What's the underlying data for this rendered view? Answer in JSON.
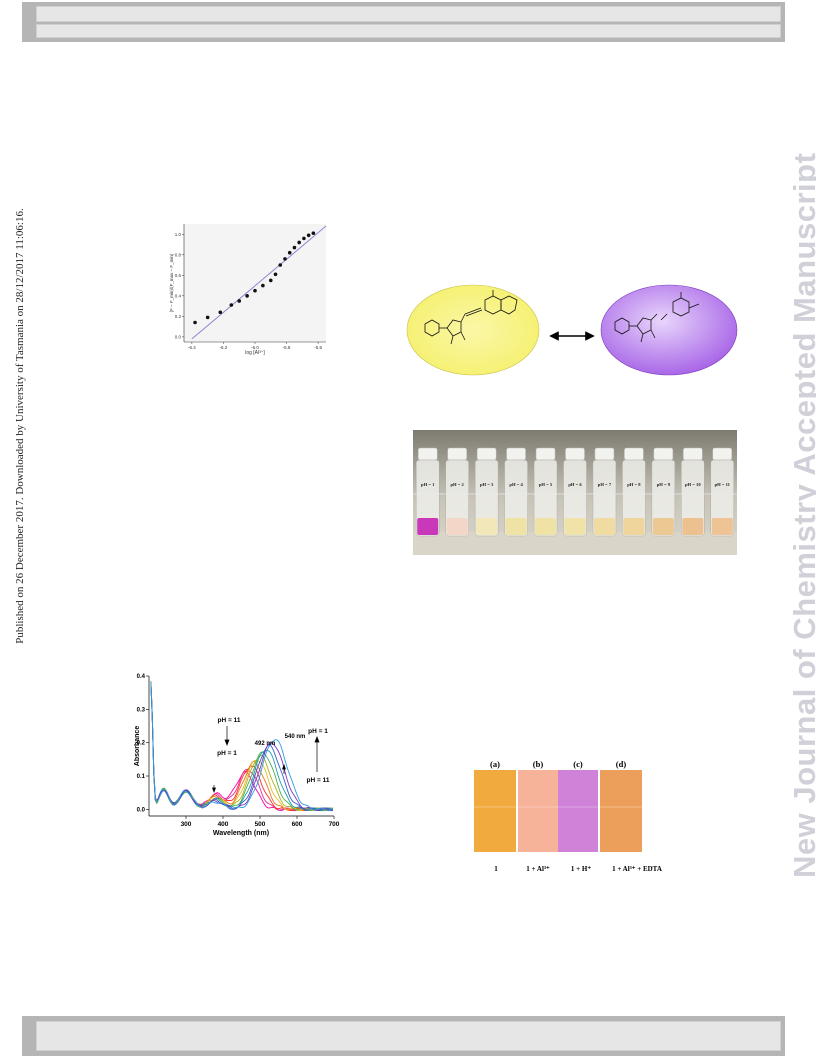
{
  "side_text": {
    "published": "Published on 26 December 2017. Downloaded by University of Tasmania on 28/12/2017 11:06:16.",
    "watermark": "New Journal of Chemistry Accepted Manuscript"
  },
  "chart_data": [
    {
      "type": "scatter",
      "xlabel": "log [Al³⁺]",
      "ylabel": "(F – F_min)/(F_max – F_min)",
      "xlim": [
        -6.45,
        -5.55
      ],
      "ylim": [
        -0.05,
        1.1
      ],
      "xticks": [
        "-6.4",
        "-6.2",
        "-6.0",
        "-5.8",
        "-5.6"
      ],
      "yticks": [
        "0.0",
        "0.2",
        "0.4",
        "0.6",
        "0.8",
        "1.0"
      ],
      "points": [
        [
          -6.38,
          0.14
        ],
        [
          -6.3,
          0.19
        ],
        [
          -6.22,
          0.24
        ],
        [
          -6.15,
          0.31
        ],
        [
          -6.1,
          0.35
        ],
        [
          -6.05,
          0.4
        ],
        [
          -6.0,
          0.45
        ],
        [
          -5.95,
          0.5
        ],
        [
          -5.9,
          0.55
        ],
        [
          -5.87,
          0.61
        ],
        [
          -5.84,
          0.7
        ],
        [
          -5.81,
          0.76
        ],
        [
          -5.78,
          0.82
        ],
        [
          -5.75,
          0.87
        ],
        [
          -5.72,
          0.92
        ],
        [
          -5.69,
          0.96
        ],
        [
          -5.66,
          0.99
        ],
        [
          -5.63,
          1.01
        ]
      ],
      "fit_line": [
        [
          -6.4,
          -0.02
        ],
        [
          -5.55,
          1.08
        ]
      ]
    },
    {
      "type": "line",
      "xlabel": "Wavelength (nm)",
      "ylabel": "Absorbance",
      "xlim": [
        200,
        700
      ],
      "ylim": [
        -0.02,
        0.4
      ],
      "xticks": [
        "300",
        "400",
        "500",
        "600",
        "700"
      ],
      "yticks": [
        "0.0",
        "0.1",
        "0.2",
        "0.3",
        "0.4"
      ],
      "annotations": {
        "peak1": "492 nm",
        "peak2": "540 nm",
        "ph11_top": "pH = 11",
        "ph1_mid": "pH = 1",
        "ph1_right": "pH = 1",
        "ph11_right": "pH = 11"
      }
    }
  ],
  "vials": {
    "labels": [
      "pH = 1",
      "pH = 2",
      "pH = 3",
      "pH = 4",
      "pH = 5",
      "pH = 6",
      "pH = 7",
      "pH = 8",
      "pH = 9",
      "pH = 10",
      "pH = 11"
    ],
    "colors": [
      "#c838b8",
      "#f3d6c8",
      "#f2e7b8",
      "#eee3a4",
      "#f0e2a4",
      "#f1e2a8",
      "#f0dca0",
      "#efd49c",
      "#ecc993",
      "#edc18f",
      "#efc495"
    ]
  },
  "strips": {
    "letters": [
      "(a)",
      "(b)",
      "(c)",
      "(d)"
    ],
    "captions": [
      "1",
      "1 + Al³⁺",
      "1 + H⁺",
      "1 + Al³⁺ + EDTA"
    ],
    "colors": [
      "#f0aa3e",
      "#f6b39a",
      "#cf82d8",
      "#ec9f5a"
    ]
  },
  "scheme": {
    "left_color": "#f5f06a",
    "right_color": "#a45ee6"
  }
}
